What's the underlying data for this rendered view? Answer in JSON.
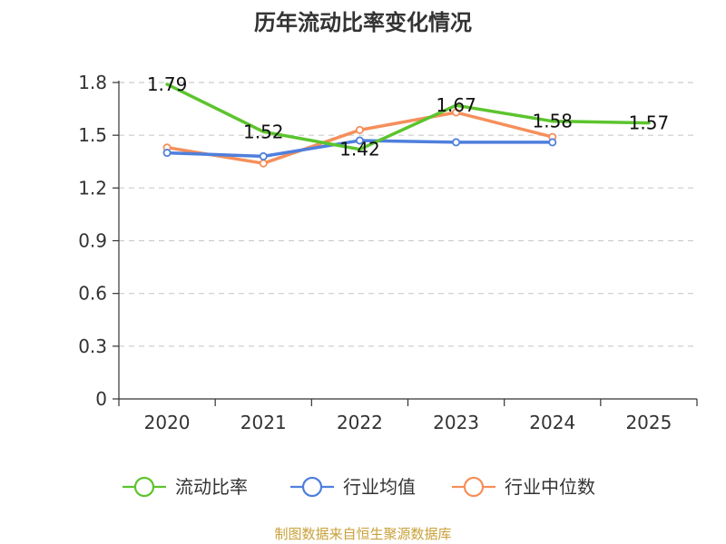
{
  "chart_data": {
    "type": "line",
    "title": "历年流动比率变化情况",
    "categories": [
      "2020",
      "2021",
      "2022",
      "2023",
      "2024",
      "2025"
    ],
    "ylim": [
      0,
      1.8
    ],
    "yticks": [
      "0",
      "0.3",
      "0.6",
      "0.9",
      "1.2",
      "1.5",
      "1.8"
    ],
    "grid": true,
    "legend_position": "bottom",
    "series": [
      {
        "name": "流动比率",
        "color": "#5cc42e",
        "values": [
          1.79,
          1.52,
          1.42,
          1.67,
          1.58,
          1.57
        ],
        "labels": [
          "1.79",
          "1.52",
          "1.42",
          "1.67",
          "1.58",
          "1.57"
        ],
        "show_labels": true,
        "show_markers": false
      },
      {
        "name": "行业均值",
        "color": "#4f7fdc",
        "values": [
          1.4,
          1.38,
          1.47,
          1.46,
          1.46,
          null
        ],
        "show_labels": false,
        "show_markers": true
      },
      {
        "name": "行业中位数",
        "color": "#f58f5b",
        "values": [
          1.43,
          1.34,
          1.53,
          1.63,
          1.49,
          null
        ],
        "show_labels": false,
        "show_markers": true
      }
    ]
  },
  "source": {
    "text": "制图数据来自恒生聚源数据库",
    "color": "#c9a13a"
  }
}
